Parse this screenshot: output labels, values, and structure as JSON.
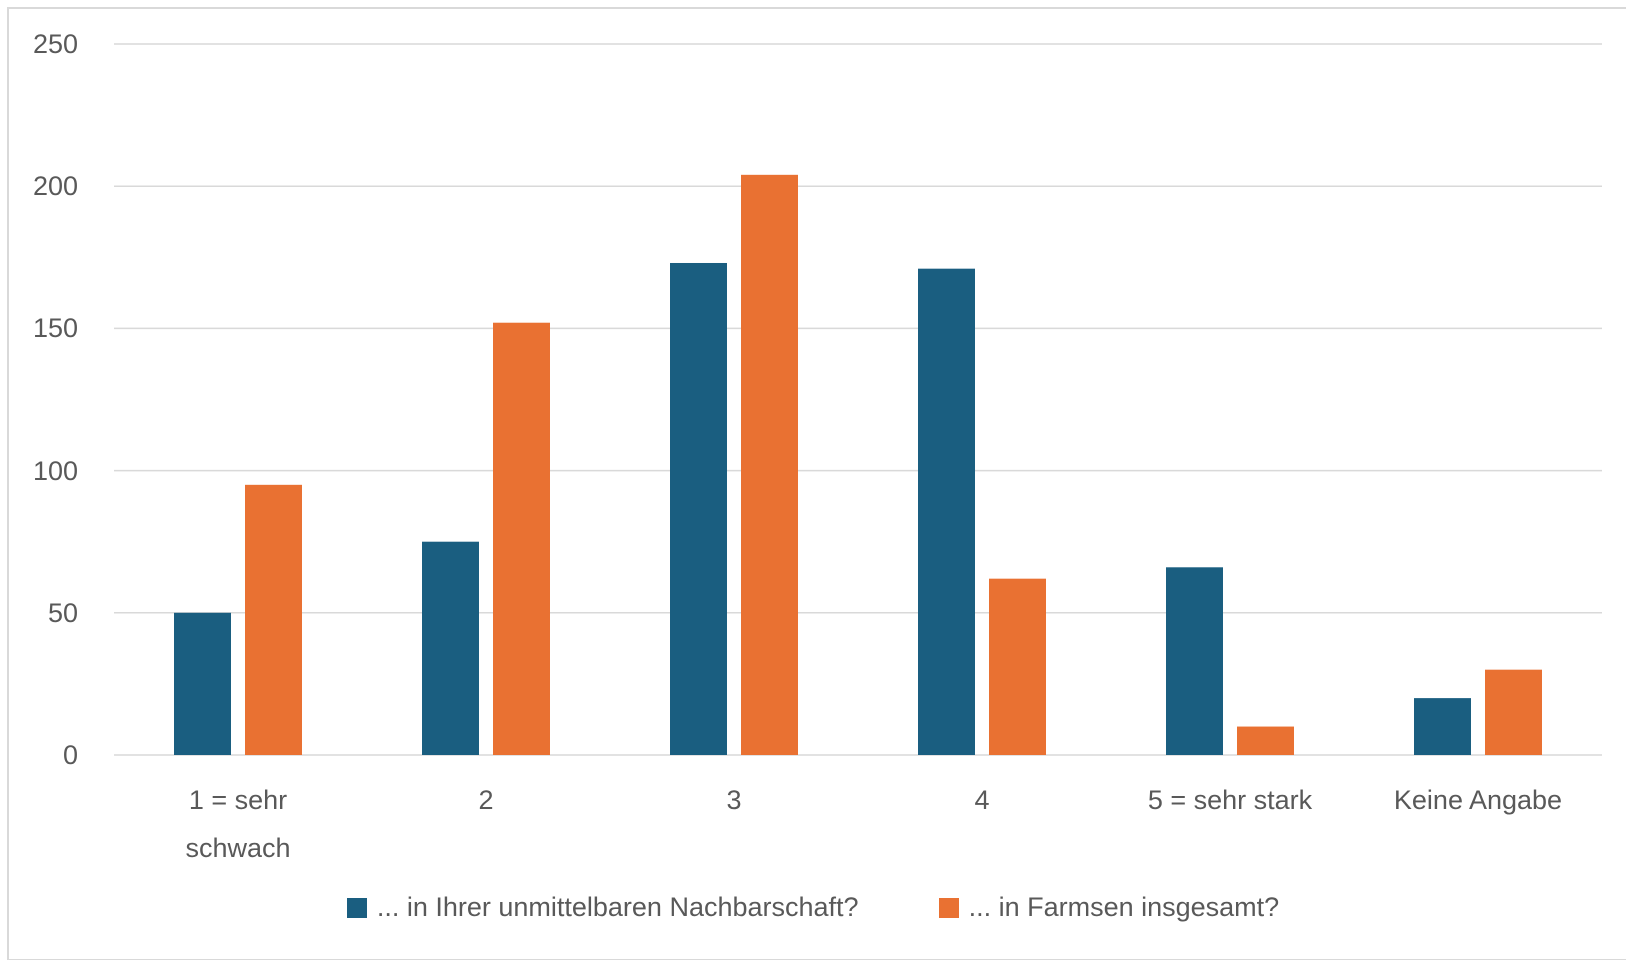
{
  "chart_data": {
    "type": "bar",
    "categories": [
      "1 = sehr schwach",
      "2",
      "3",
      "4",
      "5 = sehr stark",
      "Keine Angabe"
    ],
    "series": [
      {
        "name": "... in Ihrer unmittelbaren Nachbarschaft?",
        "color": "#1a5e80",
        "values": [
          50,
          75,
          173,
          171,
          66,
          20
        ]
      },
      {
        "name": "... in Farmsen insgesamt?",
        "color": "#e97132",
        "values": [
          95,
          152,
          204,
          62,
          10,
          30
        ]
      }
    ],
    "ylim": [
      0,
      250
    ],
    "yticks": [
      0,
      50,
      100,
      150,
      200,
      250
    ],
    "grid": true,
    "legend": "bottom"
  }
}
